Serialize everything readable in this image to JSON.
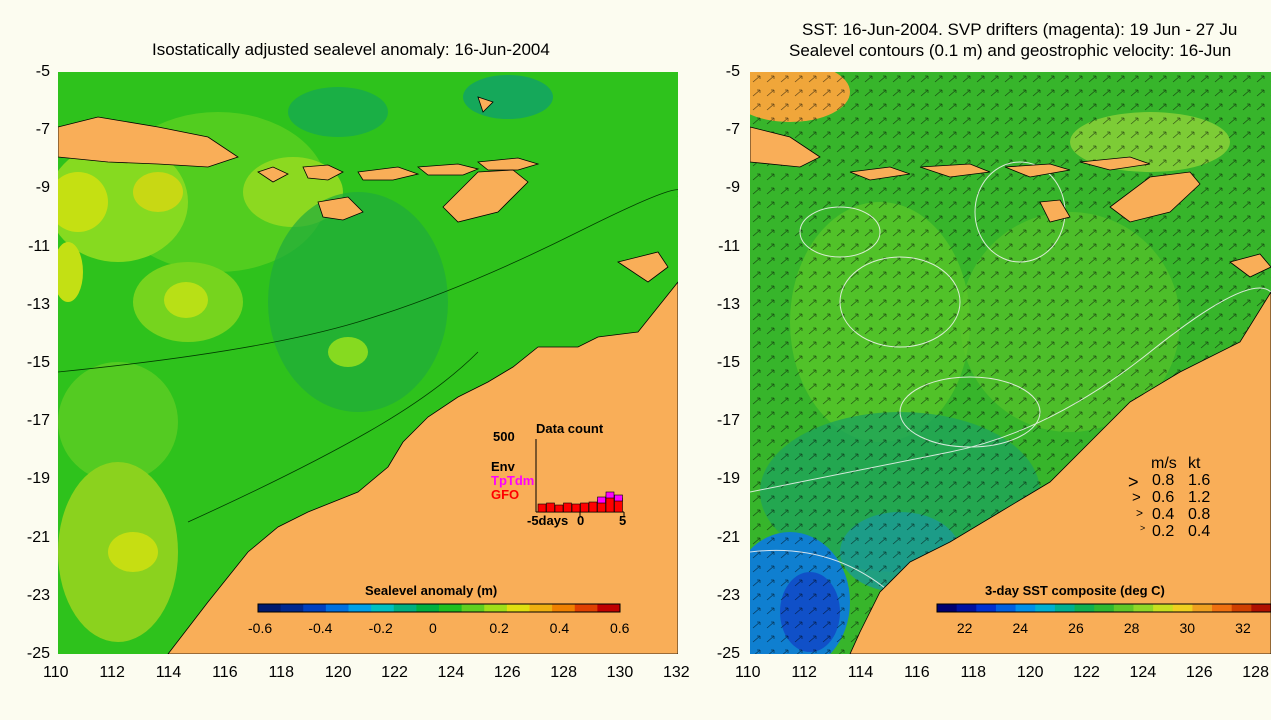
{
  "left_panel": {
    "title": "Isostatically adjusted sealevel anomaly: 16-Jun-2004",
    "colorbar": {
      "title": "Sealevel anomaly (m)",
      "ticks": [
        "-0.6",
        "-0.4",
        "-0.2",
        "0",
        "0.2",
        "0.4",
        "0.6"
      ],
      "range": [
        -0.6,
        0.6
      ]
    },
    "data_count": {
      "title": "Data count",
      "ymax_label": "500",
      "legend": [
        {
          "label": "Env",
          "color": "#000000"
        },
        {
          "label": "TpTdm",
          "color": "#ff00ff"
        },
        {
          "label": "GFO",
          "color": "#ff0000"
        }
      ],
      "x_ticks": [
        "-5days",
        "0",
        "5"
      ]
    }
  },
  "right_panel": {
    "title_line1": "SST: 16-Jun-2004. SVP drifters (magenta): 19 Jun - 27 Ju",
    "title_line2": "Sealevel contours (0.1 m) and geostrophic velocity: 16-Jun",
    "colorbar": {
      "title": "3-day SST composite (deg C)",
      "ticks": [
        "22",
        "24",
        "26",
        "28",
        "30",
        "32"
      ],
      "range": [
        21,
        33
      ]
    },
    "velocity_legend": {
      "header_ms": "m/s",
      "header_kt": "kt",
      "rows": [
        {
          "ms": "0.8",
          "kt": "1.6"
        },
        {
          "ms": "0.6",
          "kt": "1.2"
        },
        {
          "ms": "0.4",
          "kt": "0.8"
        },
        {
          "ms": "0.2",
          "kt": "0.4"
        }
      ]
    }
  },
  "axes": {
    "y_ticks": [
      "-5",
      "-7",
      "-9",
      "-11",
      "-13",
      "-15",
      "-17",
      "-19",
      "-21",
      "-23",
      "-25"
    ],
    "x_ticks_left": [
      "110",
      "112",
      "114",
      "116",
      "118",
      "120",
      "122",
      "124",
      "126",
      "128",
      "130",
      "132"
    ],
    "x_ticks_right": [
      "110",
      "112",
      "114",
      "116",
      "118",
      "120",
      "122",
      "124",
      "126",
      "128"
    ],
    "lat_range": [
      -25,
      -5
    ],
    "lon_range": [
      110,
      132
    ]
  },
  "colors": {
    "land": "#f9ae58",
    "ocean_base": "#2ec21c",
    "sst_base": "#37b52b",
    "background": "#fcfcf0"
  }
}
